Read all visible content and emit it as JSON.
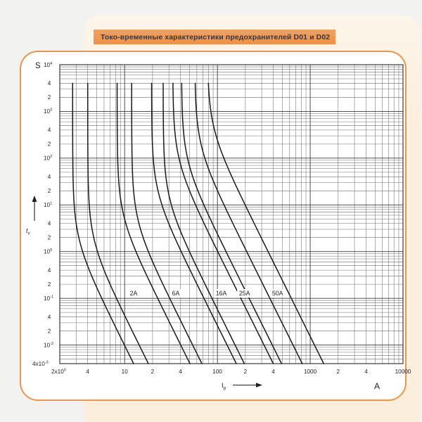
{
  "title_banner": {
    "text": "Токо-временные характеристики предохранителей D01 и D02"
  },
  "colors": {
    "accent_orange": "#ee9148",
    "panel_peach": "#fbeedd",
    "card_border": "#e8954e",
    "grid_minor": "#6f6f6f",
    "grid_major": "#3a3a3a",
    "curve": "#1a1a1a",
    "banner_text": "#343744"
  },
  "chart_data": {
    "type": "line",
    "title": "Токо-временные характеристики предохранителей D01 и D02",
    "description": "Time-current characteristic bands (min/max pre-arcing curves) of D01 and D02 fuse links on log-log axes",
    "x_axis": {
      "label": "Ip",
      "label_sub": "p",
      "unit": "A",
      "scale": "log",
      "min": 2,
      "max": 10000,
      "ticks": [
        {
          "v": 2,
          "b": "2x10",
          "s": "0"
        },
        {
          "v": 4,
          "b": "4"
        },
        {
          "v": 10,
          "b": "10"
        },
        {
          "v": 20,
          "b": "2"
        },
        {
          "v": 40,
          "b": "4"
        },
        {
          "v": 100,
          "b": "100"
        },
        {
          "v": 200,
          "b": "2"
        },
        {
          "v": 400,
          "b": "4"
        },
        {
          "v": 1000,
          "b": "1000"
        },
        {
          "v": 2000,
          "b": "2"
        },
        {
          "v": 4000,
          "b": "4"
        },
        {
          "v": 10000,
          "b": "10000"
        }
      ]
    },
    "y_axis": {
      "label": "tv",
      "label_sub": "v",
      "unit": "S",
      "scale": "log",
      "min": 0.004,
      "max": 10000,
      "ticks": [
        {
          "v": 10000,
          "b": "10",
          "s": "4"
        },
        {
          "v": 4000,
          "b": "4"
        },
        {
          "v": 2000,
          "b": "2"
        },
        {
          "v": 1000,
          "b": "10",
          "s": "3"
        },
        {
          "v": 400,
          "b": "4"
        },
        {
          "v": 200,
          "b": "2"
        },
        {
          "v": 100,
          "b": "10",
          "s": "2"
        },
        {
          "v": 40,
          "b": "4"
        },
        {
          "v": 20,
          "b": "2"
        },
        {
          "v": 10,
          "b": "10",
          "s": "1"
        },
        {
          "v": 4,
          "b": "4"
        },
        {
          "v": 2,
          "b": "2"
        },
        {
          "v": 1,
          "b": "10",
          "s": "0"
        },
        {
          "v": 0.4,
          "b": "4"
        },
        {
          "v": 0.2,
          "b": "2"
        },
        {
          "v": 0.1,
          "b": "10",
          "s": "-1"
        },
        {
          "v": 0.04,
          "b": "4"
        },
        {
          "v": 0.02,
          "b": "2"
        },
        {
          "v": 0.01,
          "b": "10",
          "s": "-2"
        },
        {
          "v": 0.004,
          "b": "4x10",
          "s": "-3"
        }
      ]
    },
    "t_range_s": [
      4000,
      0.004
    ],
    "curve_model": "I(t) = Ia * (A/t + 1)^(1/m), band of min/max pre-arcing curves per rating",
    "m": 4,
    "series": [
      {
        "name": "2A",
        "curves": [
          {
            "Ia": 2.75,
            "A": 1.7,
            "I_at_4000s": 2.8,
            "I_at_0p004s": 12.5
          },
          {
            "Ia": 4.0,
            "A": 1.64,
            "I_at_4000s": 4.0,
            "I_at_0p004s": 18
          }
        ]
      },
      {
        "name": "6A",
        "curves": [
          {
            "Ia": 8.3,
            "A": 5.5,
            "I_at_4000s": 8.3,
            "I_at_0p004s": 51
          },
          {
            "Ia": 11.9,
            "A": 4.26,
            "I_at_4000s": 11.9,
            "I_at_0p004s": 68
          }
        ]
      },
      {
        "name": "16A",
        "curves": [
          {
            "Ia": 19.5,
            "A": 18,
            "I_at_4000s": 19.5,
            "I_at_0p004s": 160
          },
          {
            "Ia": 26,
            "A": 12.6,
            "I_at_4000s": 26,
            "I_at_0p004s": 195
          }
        ]
      },
      {
        "name": "25A",
        "curves": [
          {
            "Ia": 33,
            "A": 86,
            "I_at_4000s": 33,
            "I_at_0p004s": 400
          },
          {
            "Ia": 41,
            "A": 82,
            "I_at_4000s": 41,
            "I_at_0p004s": 490
          }
        ]
      },
      {
        "name": "50A",
        "curves": [
          {
            "Ia": 57,
            "A": 172,
            "I_at_4000s": 58,
            "I_at_0p004s": 820
          },
          {
            "Ia": 78,
            "A": 412,
            "I_at_4000s": 79,
            "I_at_0p004s": 1400
          }
        ]
      }
    ],
    "curve_labels": [
      {
        "text": "2A",
        "I": 12.5,
        "t": 0.128
      },
      {
        "text": "6A",
        "I": 35.6,
        "t": 0.128
      },
      {
        "text": "16A",
        "I": 110,
        "t": 0.128
      },
      {
        "text": "25A",
        "I": 196,
        "t": 0.128
      },
      {
        "text": "50A",
        "I": 445,
        "t": 0.128
      }
    ],
    "legend_position": "none",
    "grid": "log-log full minor grid"
  }
}
